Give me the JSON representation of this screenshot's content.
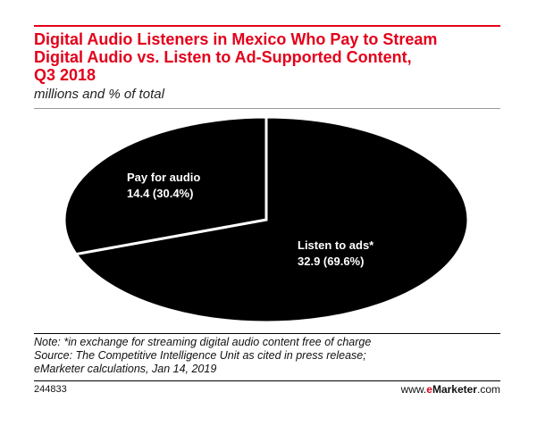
{
  "header": {
    "title_lines": [
      "Digital Audio Listeners in Mexico Who Pay to Stream",
      "Digital Audio vs. Listen to Ad-Supported Content,",
      "Q3 2018"
    ],
    "subtitle": "millions and % of total"
  },
  "chart_data": {
    "type": "pie",
    "title": "Digital Audio Listeners in Mexico Who Pay to Stream Digital Audio vs. Listen to Ad-Supported Content, Q3 2018",
    "subtitle": "millions and % of total",
    "slices": [
      {
        "label": "Pay for audio",
        "value": 14.4,
        "percent": 30.4,
        "value_text": "14.4 (30.4%)"
      },
      {
        "label": "Listen to ads*",
        "value": 32.9,
        "percent": 69.6,
        "value_text": "32.9 (69.6%)"
      }
    ],
    "colors": {
      "slice_fill": "#000000",
      "slice_border": "#ffffff",
      "label_text": "#ffffff"
    }
  },
  "footer": {
    "note_lines": [
      "Note: *in exchange for streaming digital audio content free of charge",
      "Source: The Competitive Intelligence Unit as cited in press release;",
      "eMarketer calculations, Jan 14, 2019"
    ],
    "chart_id": "244833",
    "brand": {
      "prefix": "www.",
      "accent": "e",
      "name": "Marketer",
      "suffix": ".com"
    }
  },
  "colors": {
    "title": "#e3001b",
    "accent": "#e3001b"
  }
}
